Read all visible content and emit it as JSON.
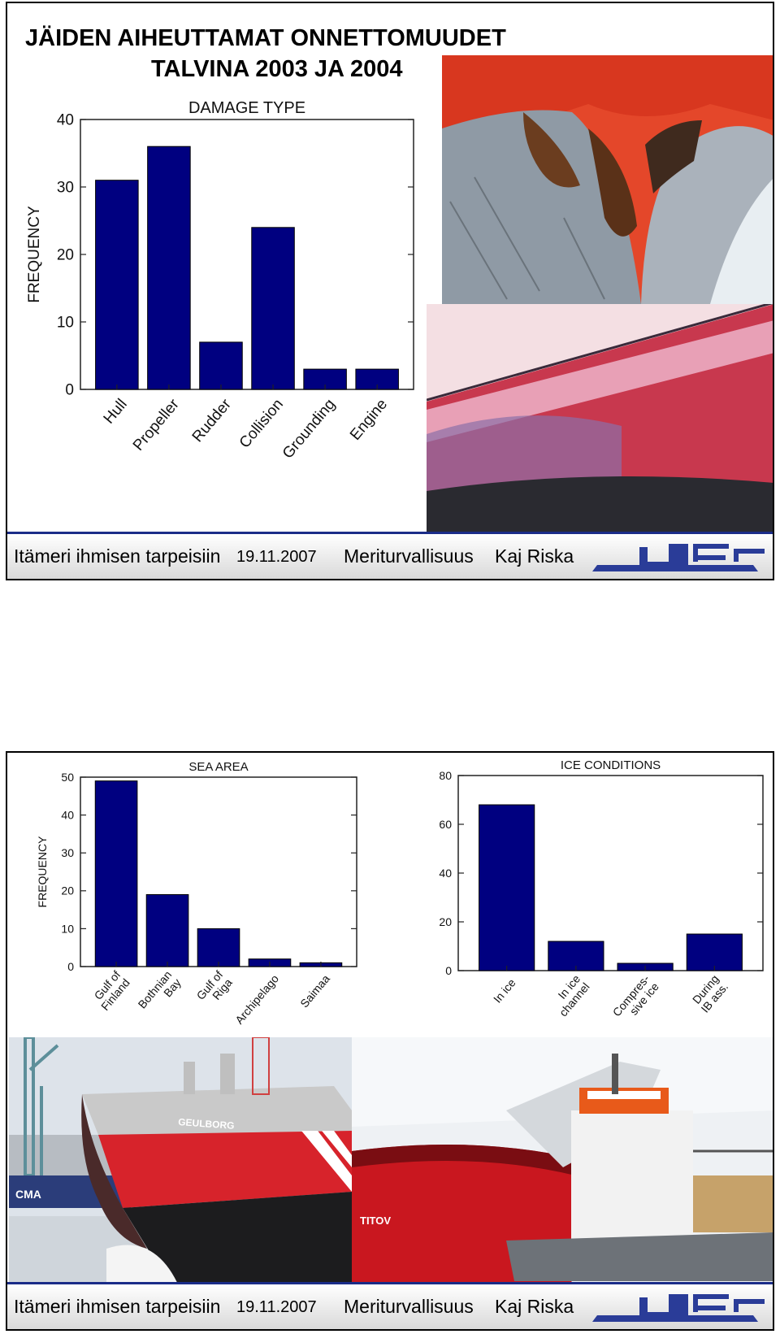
{
  "slide1": {
    "title_line1": "JÄIDEN AIHEUTTAMAT ONNETTOMUUDET",
    "title_line2": "TALVINA 2003 JA 2004"
  },
  "footer": {
    "event": "Itämeri ihmisen tarpeisiin",
    "date": "19.11.2007",
    "topic": "Meriturvallisuus",
    "author": "Kaj Riska"
  },
  "colors": {
    "bar": "#000080",
    "footer_rule": "#1a2c88",
    "logo": "#2a3c98"
  },
  "chart_data": [
    {
      "type": "bar",
      "title": "DAMAGE TYPE",
      "ylabel": "FREQUENCY",
      "xlabel": "",
      "ylim": [
        0,
        40
      ],
      "yticks": [
        0,
        10,
        20,
        30,
        40
      ],
      "categories": [
        [
          "Hull"
        ],
        [
          "Propeller"
        ],
        [
          "Rudder"
        ],
        [
          "Collision"
        ],
        [
          "Grounding"
        ],
        [
          "Engine"
        ]
      ],
      "values": [
        31,
        36,
        7,
        24,
        3,
        3
      ]
    },
    {
      "type": "bar",
      "title": "SEA AREA",
      "ylabel": "FREQUENCY",
      "xlabel": "",
      "ylim": [
        0,
        50
      ],
      "yticks": [
        0,
        10,
        20,
        30,
        40,
        50
      ],
      "categories": [
        [
          "Gulf of",
          "Finland"
        ],
        [
          "Bothnian",
          "Bay"
        ],
        [
          "Gulf of",
          "Riga"
        ],
        [
          "Archipelago"
        ],
        [
          "Saimaa"
        ]
      ],
      "values": [
        49,
        19,
        10,
        2,
        1
      ]
    },
    {
      "type": "bar",
      "title": "ICE CONDITIONS",
      "ylabel": "",
      "xlabel": "",
      "ylim": [
        0,
        80
      ],
      "yticks": [
        0,
        20,
        40,
        60,
        80
      ],
      "categories": [
        [
          "In ice"
        ],
        [
          "In ice",
          "channel"
        ],
        [
          "Compres-",
          "sive ice"
        ],
        [
          "During",
          "IB ass."
        ]
      ],
      "values": [
        68,
        12,
        3,
        15
      ]
    }
  ],
  "ship_names": {
    "ship1": "GEULBORG",
    "ship2": "TITOV",
    "container": "CMA"
  }
}
